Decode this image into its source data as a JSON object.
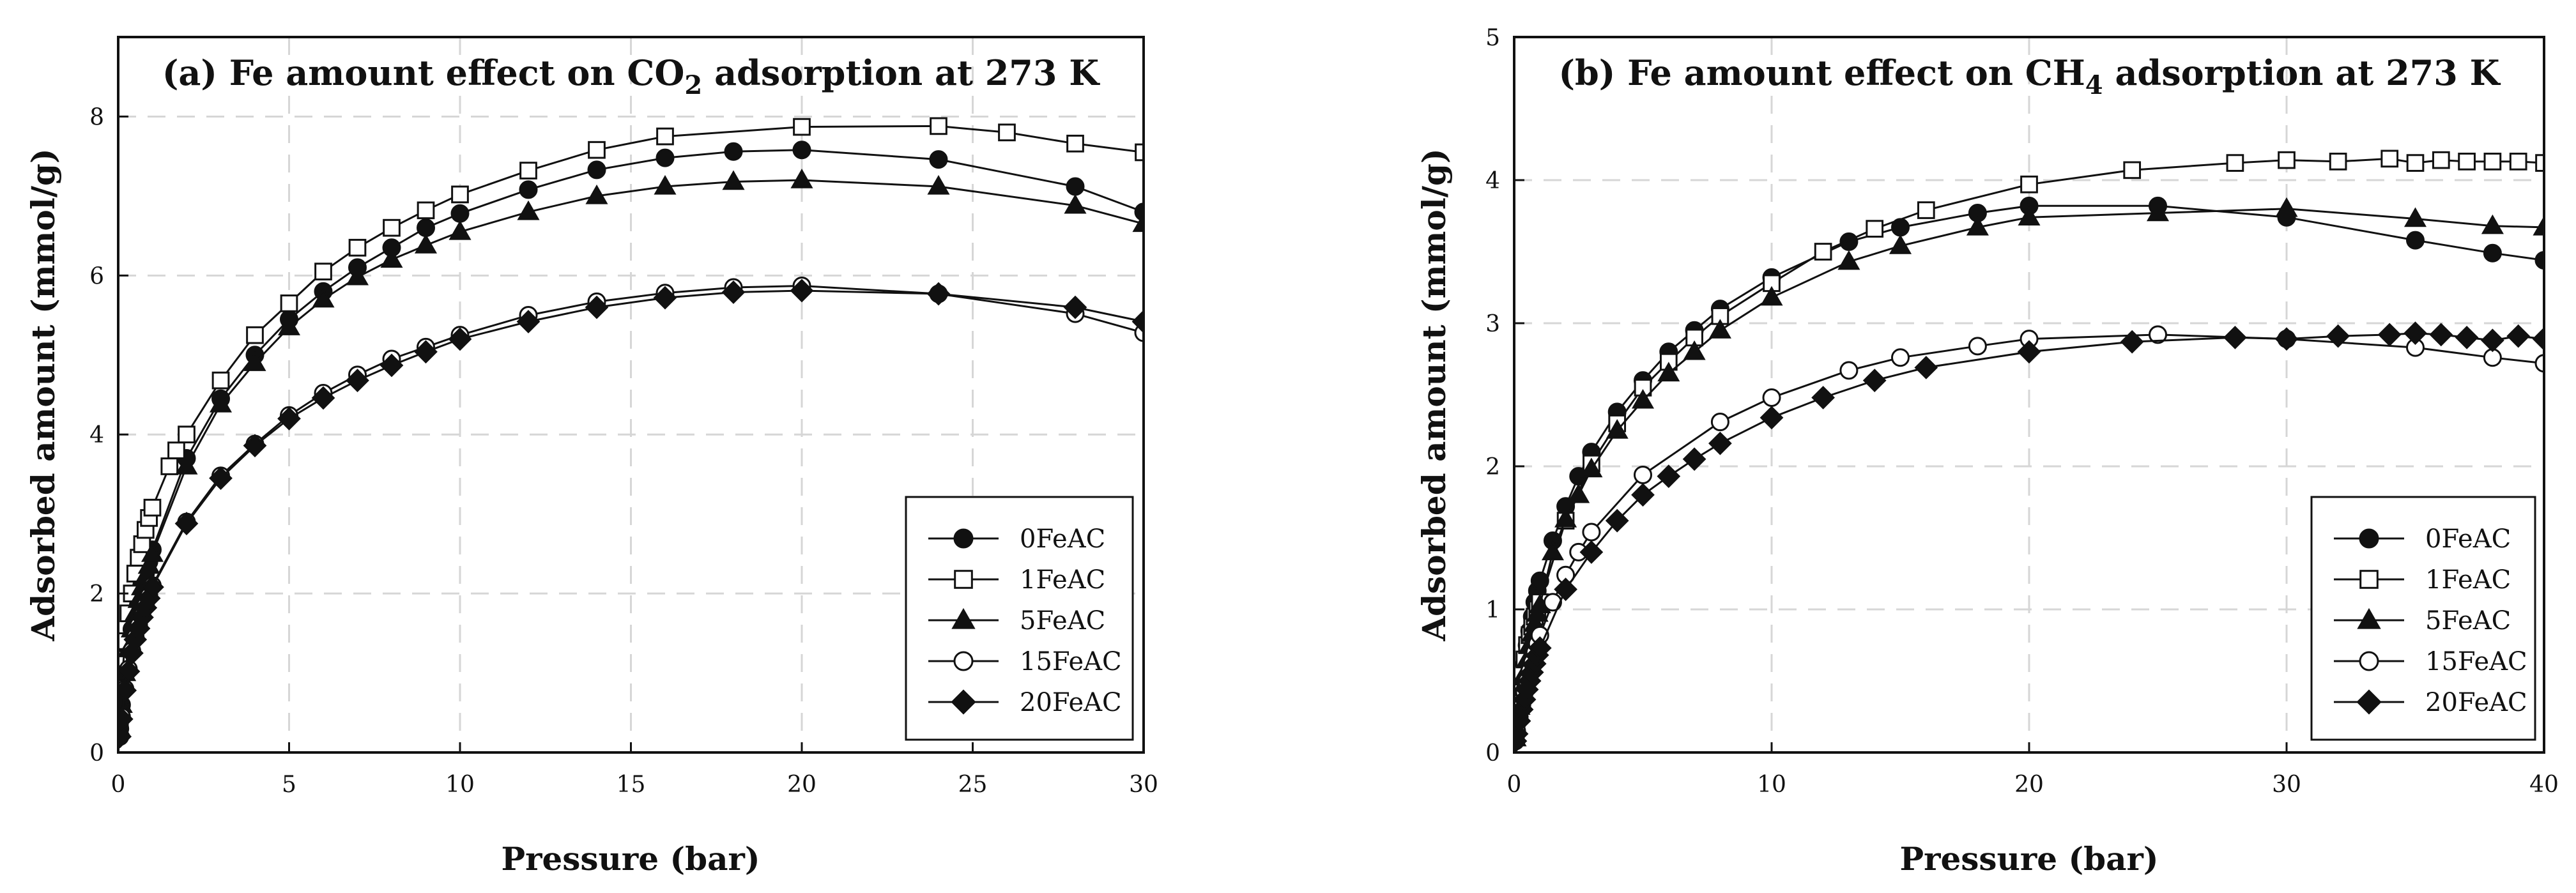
{
  "chart_data": [
    {
      "type": "scatter",
      "title": "(a) Fe amount effect on CO",
      "title_sub": "2",
      "title_tail": " adsorption at 273 K",
      "xlabel": "Pressure (bar)",
      "ylabel": "Adsorbed amount (mmol/g)",
      "xlim": [
        0,
        30
      ],
      "ylim": [
        0,
        9
      ],
      "xticks": [
        0,
        5,
        10,
        15,
        20,
        25,
        30
      ],
      "yticks": [
        0,
        2,
        4,
        6,
        8
      ],
      "grid": "dashed",
      "legend_position": "bottom-right",
      "series": [
        {
          "name": "0FeAC",
          "marker": "circle-filled",
          "x": [
            0.05,
            0.1,
            0.2,
            0.3,
            0.4,
            0.5,
            0.6,
            0.7,
            0.8,
            0.9,
            1.0,
            2.0,
            3.0,
            4.0,
            5.0,
            6.0,
            7.0,
            8.0,
            9.0,
            10.0,
            12.0,
            14.0,
            16.0,
            18.0,
            20.0,
            24.0,
            28.0,
            30.0
          ],
          "y": [
            0.3,
            0.6,
            1.0,
            1.3,
            1.55,
            1.75,
            1.95,
            2.1,
            2.25,
            2.4,
            2.55,
            3.7,
            4.45,
            5.0,
            5.45,
            5.8,
            6.1,
            6.35,
            6.6,
            6.78,
            7.08,
            7.33,
            7.48,
            7.56,
            7.58,
            7.46,
            7.12,
            6.8
          ]
        },
        {
          "name": "1FeAC",
          "marker": "square-open",
          "x": [
            0.05,
            0.1,
            0.2,
            0.3,
            0.4,
            0.5,
            0.6,
            0.7,
            0.8,
            0.9,
            1.0,
            1.5,
            1.7,
            2.0,
            3.0,
            4.0,
            5.0,
            6.0,
            7.0,
            8.0,
            9.0,
            10.0,
            12.0,
            14.0,
            16.0,
            20.0,
            24.0,
            26.0,
            28.0,
            30.0
          ],
          "y": [
            0.45,
            0.85,
            1.4,
            1.75,
            2.0,
            2.25,
            2.45,
            2.62,
            2.8,
            2.95,
            3.08,
            3.6,
            3.8,
            4.0,
            4.68,
            5.25,
            5.65,
            6.05,
            6.35,
            6.6,
            6.82,
            7.02,
            7.32,
            7.58,
            7.75,
            7.87,
            7.88,
            7.8,
            7.66,
            7.55
          ]
        },
        {
          "name": "5FeAC",
          "marker": "triangle-filled",
          "x": [
            0.05,
            0.1,
            0.2,
            0.3,
            0.4,
            0.5,
            0.6,
            0.7,
            0.8,
            0.9,
            1.0,
            2.0,
            3.0,
            4.0,
            5.0,
            6.0,
            7.0,
            8.0,
            9.0,
            10.0,
            12.0,
            14.0,
            16.0,
            18.0,
            20.0,
            24.0,
            28.0,
            30.0
          ],
          "y": [
            0.3,
            0.6,
            1.0,
            1.3,
            1.55,
            1.75,
            1.92,
            2.08,
            2.22,
            2.35,
            2.5,
            3.6,
            4.38,
            4.9,
            5.35,
            5.7,
            5.98,
            6.2,
            6.38,
            6.55,
            6.8,
            7.0,
            7.12,
            7.18,
            7.2,
            7.12,
            6.88,
            6.65
          ]
        },
        {
          "name": "15FeAC",
          "marker": "circle-open",
          "x": [
            0.05,
            0.1,
            0.2,
            0.3,
            0.4,
            0.5,
            0.6,
            0.7,
            0.8,
            0.9,
            1.0,
            2.0,
            3.0,
            4.0,
            5.0,
            6.0,
            7.0,
            8.0,
            9.0,
            10.0,
            12.0,
            14.0,
            16.0,
            18.0,
            20.0,
            24.0,
            28.0,
            30.0
          ],
          "y": [
            0.2,
            0.45,
            0.8,
            1.05,
            1.28,
            1.45,
            1.6,
            1.72,
            1.85,
            1.97,
            2.1,
            2.9,
            3.48,
            3.88,
            4.24,
            4.52,
            4.75,
            4.95,
            5.1,
            5.25,
            5.5,
            5.67,
            5.78,
            5.85,
            5.87,
            5.77,
            5.52,
            5.28
          ]
        },
        {
          "name": "20FeAC",
          "marker": "diamond-filled",
          "x": [
            0.05,
            0.1,
            0.2,
            0.3,
            0.4,
            0.5,
            0.6,
            0.7,
            0.8,
            0.9,
            1.0,
            2.0,
            3.0,
            4.0,
            5.0,
            6.0,
            7.0,
            8.0,
            9.0,
            10.0,
            12.0,
            14.0,
            16.0,
            18.0,
            20.0,
            24.0,
            28.0,
            30.0
          ],
          "y": [
            0.2,
            0.42,
            0.78,
            1.02,
            1.25,
            1.42,
            1.56,
            1.7,
            1.82,
            1.94,
            2.08,
            2.88,
            3.45,
            3.86,
            4.2,
            4.46,
            4.68,
            4.87,
            5.04,
            5.2,
            5.42,
            5.6,
            5.72,
            5.79,
            5.81,
            5.77,
            5.6,
            5.42
          ]
        }
      ]
    },
    {
      "type": "scatter",
      "title": "(b) Fe amount effect on CH",
      "title_sub": "4",
      "title_tail": " adsorption at 273 K",
      "xlabel": "Pressure (bar)",
      "ylabel": "Adsorbed amount (mmol/g)",
      "xlim": [
        0,
        40
      ],
      "ylim": [
        0,
        5
      ],
      "xticks": [
        0,
        10,
        20,
        30,
        40
      ],
      "yticks": [
        0,
        1,
        2,
        3,
        4,
        5
      ],
      "grid": "dashed",
      "legend_position": "bottom-right",
      "series": [
        {
          "name": "0FeAC",
          "marker": "circle-filled",
          "x": [
            0.05,
            0.1,
            0.2,
            0.3,
            0.4,
            0.5,
            0.6,
            0.7,
            0.8,
            0.9,
            1.0,
            1.5,
            2.0,
            2.5,
            3.0,
            4.0,
            5.0,
            6.0,
            7.0,
            8.0,
            10.0,
            13.0,
            15.0,
            18.0,
            20.0,
            25.0,
            30.0,
            35.0,
            38.0,
            40.0
          ],
          "y": [
            0.1,
            0.2,
            0.35,
            0.5,
            0.62,
            0.75,
            0.85,
            0.95,
            1.05,
            1.13,
            1.2,
            1.48,
            1.72,
            1.93,
            2.1,
            2.38,
            2.6,
            2.8,
            2.95,
            3.1,
            3.32,
            3.57,
            3.67,
            3.77,
            3.82,
            3.82,
            3.74,
            3.58,
            3.49,
            3.44
          ]
        },
        {
          "name": "1FeAC",
          "marker": "square-open",
          "x": [
            0.05,
            0.1,
            0.2,
            0.3,
            0.4,
            0.5,
            0.6,
            0.7,
            0.8,
            0.9,
            1.0,
            2.0,
            3.0,
            4.0,
            5.0,
            6.0,
            7.0,
            8.0,
            10.0,
            12.0,
            14.0,
            16.0,
            20.0,
            24.0,
            28.0,
            30.0,
            32.0,
            34.0,
            35.0,
            36.0,
            37.0,
            38.0,
            39.0,
            40.0
          ],
          "y": [
            0.12,
            0.25,
            0.42,
            0.55,
            0.65,
            0.75,
            0.82,
            0.88,
            0.95,
            1.0,
            1.05,
            1.62,
            2.02,
            2.3,
            2.55,
            2.73,
            2.9,
            3.05,
            3.28,
            3.5,
            3.66,
            3.79,
            3.97,
            4.07,
            4.12,
            4.14,
            4.13,
            4.15,
            4.12,
            4.14,
            4.13,
            4.13,
            4.13,
            4.12
          ]
        },
        {
          "name": "5FeAC",
          "marker": "triangle-filled",
          "x": [
            0.05,
            0.1,
            0.2,
            0.3,
            0.4,
            0.5,
            0.6,
            0.7,
            0.8,
            0.9,
            1.0,
            1.5,
            2.0,
            2.5,
            3.0,
            4.0,
            5.0,
            6.0,
            7.0,
            8.0,
            10.0,
            13.0,
            15.0,
            18.0,
            20.0,
            25.0,
            30.0,
            35.0,
            38.0,
            40.0
          ],
          "y": [
            0.1,
            0.18,
            0.32,
            0.45,
            0.55,
            0.65,
            0.75,
            0.83,
            0.9,
            0.97,
            1.03,
            1.4,
            1.63,
            1.8,
            1.98,
            2.25,
            2.46,
            2.65,
            2.8,
            2.95,
            3.18,
            3.43,
            3.54,
            3.67,
            3.74,
            3.77,
            3.8,
            3.73,
            3.68,
            3.67
          ]
        },
        {
          "name": "15FeAC",
          "marker": "circle-open",
          "x": [
            0.05,
            0.1,
            0.2,
            0.3,
            0.4,
            0.5,
            0.6,
            0.7,
            0.8,
            0.9,
            1.0,
            1.5,
            2.0,
            2.5,
            3.0,
            5.0,
            8.0,
            10.0,
            13.0,
            15.0,
            18.0,
            20.0,
            25.0,
            30.0,
            35.0,
            38.0,
            40.0
          ],
          "y": [
            0.08,
            0.15,
            0.25,
            0.33,
            0.42,
            0.5,
            0.57,
            0.63,
            0.7,
            0.76,
            0.82,
            1.05,
            1.24,
            1.4,
            1.54,
            1.94,
            2.31,
            2.48,
            2.67,
            2.76,
            2.84,
            2.89,
            2.92,
            2.89,
            2.83,
            2.76,
            2.72
          ]
        },
        {
          "name": "20FeAC",
          "marker": "diamond-filled",
          "x": [
            0.05,
            0.1,
            0.2,
            0.3,
            0.4,
            0.5,
            0.6,
            0.7,
            0.8,
            0.9,
            1.0,
            2.0,
            3.0,
            4.0,
            5.0,
            6.0,
            7.0,
            8.0,
            10.0,
            12.0,
            14.0,
            16.0,
            20.0,
            24.0,
            28.0,
            30.0,
            32.0,
            34.0,
            35.0,
            36.0,
            37.0,
            38.0,
            39.0,
            40.0
          ],
          "y": [
            0.08,
            0.13,
            0.22,
            0.3,
            0.37,
            0.44,
            0.5,
            0.56,
            0.62,
            0.68,
            0.73,
            1.14,
            1.4,
            1.62,
            1.8,
            1.93,
            2.05,
            2.16,
            2.34,
            2.48,
            2.6,
            2.69,
            2.8,
            2.87,
            2.9,
            2.89,
            2.91,
            2.92,
            2.93,
            2.92,
            2.9,
            2.88,
            2.91,
            2.89
          ]
        }
      ]
    }
  ]
}
